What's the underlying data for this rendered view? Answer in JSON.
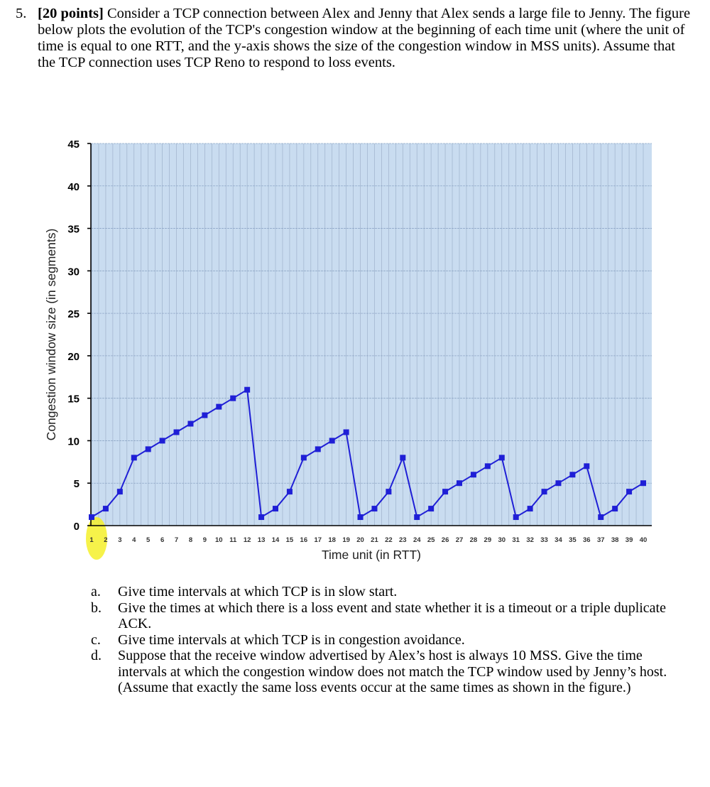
{
  "question": {
    "number": "5.",
    "points": "[20 points]",
    "text": " Consider a TCP connection between Alex and Jenny that Alex sends a large file to Jenny. The figure below plots the evolution of the TCP's congestion window at the beginning of each time unit (where the unit of time is equal to one RTT, and the y-axis shows the size of the congestion window in MSS units). Assume that the TCP connection uses TCP Reno to respond to loss events."
  },
  "chart_data": {
    "type": "line",
    "xlabel": "Time unit (in RTT)",
    "ylabel": "Congestion window size (in segments)",
    "xlim": [
      0,
      40
    ],
    "ylim": [
      0,
      45
    ],
    "x_ticks": [
      1,
      2,
      3,
      4,
      5,
      6,
      7,
      8,
      9,
      10,
      11,
      12,
      13,
      14,
      15,
      16,
      17,
      18,
      19,
      20,
      21,
      22,
      23,
      24,
      25,
      26,
      27,
      28,
      29,
      30,
      31,
      32,
      33,
      34,
      35,
      36,
      37,
      38,
      39,
      40
    ],
    "y_ticks": [
      0,
      5,
      10,
      15,
      20,
      25,
      30,
      35,
      40,
      45
    ],
    "grid": true,
    "series": [
      {
        "x": [
          1,
          2,
          3,
          4,
          5,
          6,
          7,
          8,
          9,
          10,
          11,
          12,
          13,
          14,
          15,
          16,
          17,
          18,
          19,
          20,
          21,
          22,
          23,
          24,
          25,
          26,
          27,
          28,
          29,
          30,
          31,
          32,
          33,
          34,
          35,
          36,
          37,
          38,
          39,
          40
        ],
        "values": [
          1,
          2,
          4,
          8,
          9,
          10,
          11,
          12,
          13,
          14,
          15,
          16,
          1,
          2,
          4,
          8,
          9,
          10,
          11,
          1,
          2,
          4,
          8,
          1,
          2,
          4,
          5,
          6,
          7,
          8,
          1,
          2,
          4,
          5,
          6,
          7,
          1,
          2,
          4,
          5
        ]
      }
    ],
    "colors": {
      "line": "#1f1fd6",
      "plot_background": "#c9dcf0",
      "grid": "#9fb2cc",
      "highlight": "#f4f02a"
    }
  },
  "subquestions": [
    {
      "letter": "a.",
      "text": "Give time intervals at which TCP is in slow start."
    },
    {
      "letter": "b.",
      "text": "Give the times at which there is a loss event and state whether it is a timeout or a triple duplicate ACK."
    },
    {
      "letter": "c.",
      "text": "Give time intervals at which TCP is in congestion avoidance."
    },
    {
      "letter": "d.",
      "text": "Suppose that the receive window advertised by Alex’s host is always 10 MSS. Give the time intervals at which the congestion window does not match the TCP window used by Jenny’s host. (Assume that exactly the same loss events occur at the same times as shown in the figure.)"
    }
  ]
}
